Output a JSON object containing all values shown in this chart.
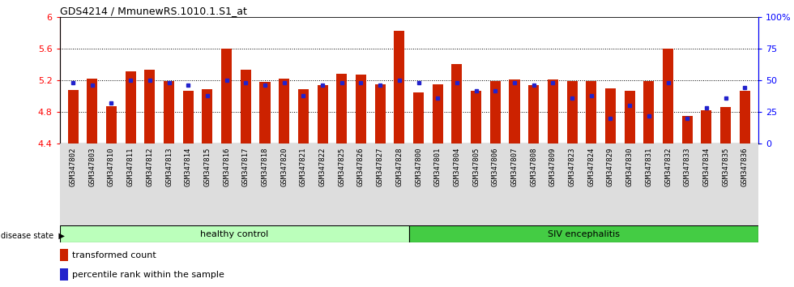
{
  "title": "GDS4214 / MmunewRS.1010.1.S1_at",
  "samples": [
    "GSM347802",
    "GSM347803",
    "GSM347810",
    "GSM347811",
    "GSM347812",
    "GSM347813",
    "GSM347814",
    "GSM347815",
    "GSM347816",
    "GSM347817",
    "GSM347818",
    "GSM347820",
    "GSM347821",
    "GSM347822",
    "GSM347825",
    "GSM347826",
    "GSM347827",
    "GSM347828",
    "GSM347800",
    "GSM347801",
    "GSM347804",
    "GSM347805",
    "GSM347806",
    "GSM347807",
    "GSM347808",
    "GSM347809",
    "GSM347823",
    "GSM347824",
    "GSM347829",
    "GSM347830",
    "GSM347831",
    "GSM347832",
    "GSM347833",
    "GSM347834",
    "GSM347835",
    "GSM347836"
  ],
  "red_values": [
    5.08,
    5.22,
    4.87,
    5.31,
    5.33,
    5.19,
    5.07,
    5.09,
    5.6,
    5.33,
    5.18,
    5.22,
    5.09,
    5.14,
    5.28,
    5.27,
    5.15,
    5.83,
    5.05,
    5.15,
    5.41,
    5.07,
    5.19,
    5.21,
    5.14,
    5.21,
    5.19,
    5.19,
    5.1,
    5.07,
    5.19,
    5.6,
    4.75,
    4.82,
    4.86,
    5.07
  ],
  "blue_values": [
    48,
    46,
    32,
    50,
    50,
    48,
    46,
    38,
    50,
    48,
    46,
    48,
    38,
    46,
    48,
    48,
    46,
    50,
    48,
    36,
    48,
    42,
    42,
    48,
    46,
    48,
    36,
    38,
    20,
    30,
    22,
    48,
    20,
    28,
    36,
    44
  ],
  "healthy_count": 18,
  "ylim_left": [
    4.4,
    6.0
  ],
  "ylim_right": [
    0,
    100
  ],
  "yticks_left": [
    4.4,
    4.8,
    5.2,
    5.6,
    6.0
  ],
  "yticks_right": [
    0,
    25,
    50,
    75,
    100
  ],
  "ytick_labels_left": [
    "4.4",
    "4.8",
    "5.2",
    "5.6",
    "6"
  ],
  "ytick_labels_right": [
    "0",
    "25",
    "50",
    "75",
    "100%"
  ],
  "bar_color": "#cc2200",
  "dot_color": "#2222cc",
  "healthy_color": "#bbffbb",
  "siv_color": "#44cc44",
  "healthy_label": "healthy control",
  "siv_label": "SIV encephalitis",
  "disease_label": "disease state",
  "legend_red": "transformed count",
  "legend_blue": "percentile rank within the sample",
  "base": 4.4,
  "grid_lines": [
    4.8,
    5.2,
    5.6
  ],
  "label_bg": "#dddddd"
}
